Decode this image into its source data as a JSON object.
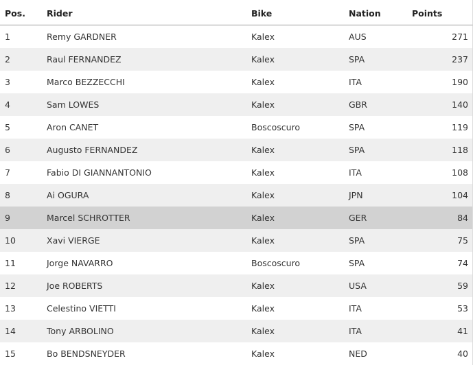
{
  "table": {
    "header": [
      "Pos.",
      "Rider",
      "Bike",
      "Nation",
      "Points"
    ],
    "rows": [
      [
        1,
        "Remy GARDNER",
        "Kalex",
        "AUS",
        271
      ],
      [
        2,
        "Raul FERNANDEZ",
        "Kalex",
        "SPA",
        237
      ],
      [
        3,
        "Marco BEZZECCHI",
        "Kalex",
        "ITA",
        190
      ],
      [
        4,
        "Sam LOWES",
        "Kalex",
        "GBR",
        140
      ],
      [
        5,
        "Aron CANET",
        "Boscoscuro",
        "SPA",
        119
      ],
      [
        6,
        "Augusto FERNANDEZ",
        "Kalex",
        "SPA",
        118
      ],
      [
        7,
        "Fabio DI GIANNANTONIO",
        "Kalex",
        "ITA",
        108
      ],
      [
        8,
        "Ai OGURA",
        "Kalex",
        "JPN",
        104
      ],
      [
        9,
        "Marcel SCHROTTER",
        "Kalex",
        "GER",
        84
      ],
      [
        10,
        "Xavi VIERGE",
        "Kalex",
        "SPA",
        75
      ],
      [
        11,
        "Jorge NAVARRO",
        "Boscoscuro",
        "SPA",
        74
      ],
      [
        12,
        "Joe ROBERTS",
        "Kalex",
        "USA",
        59
      ],
      [
        13,
        "Celestino VIETTI",
        "Kalex",
        "ITA",
        53
      ],
      [
        14,
        "Tony ARBOLINO",
        "Kalex",
        "ITA",
        41
      ],
      [
        15,
        "Bo BENDSNEYDER",
        "Kalex",
        "NED",
        40
      ]
    ]
  }
}
